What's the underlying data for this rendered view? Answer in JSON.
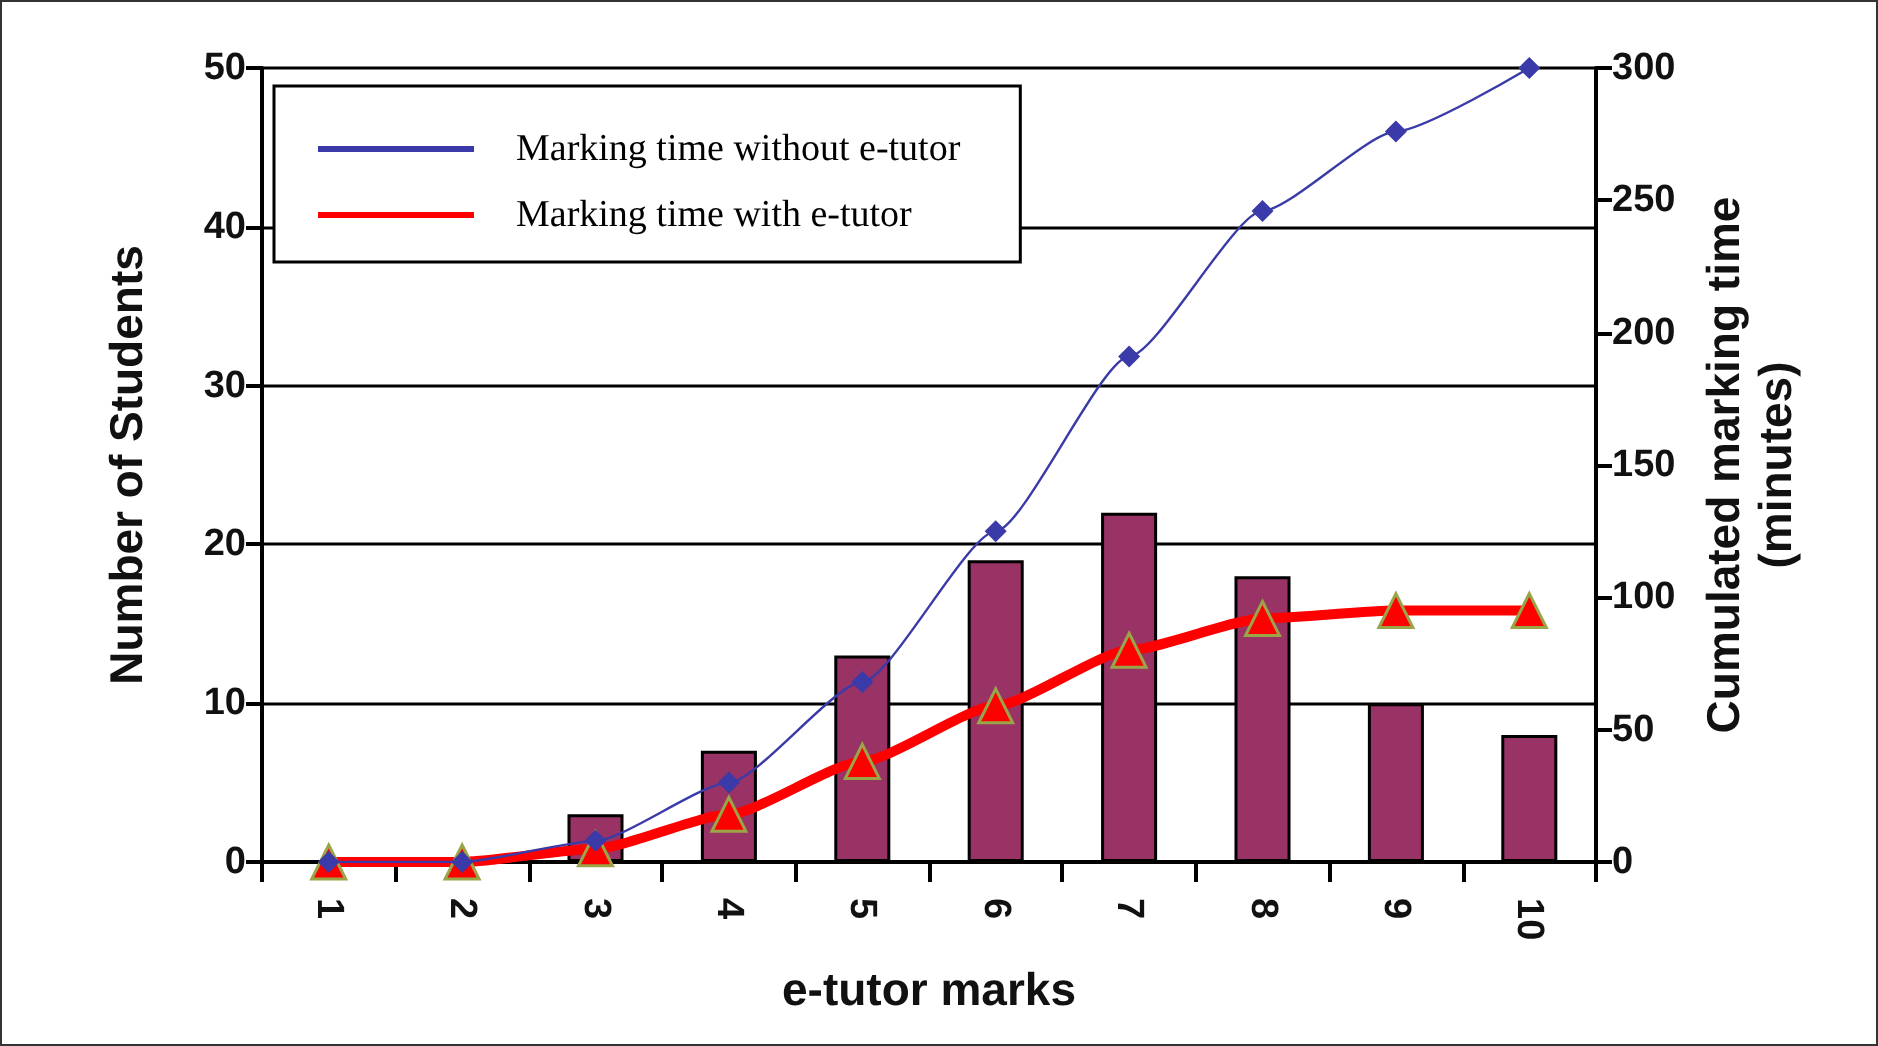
{
  "chart_data": {
    "type": "bar",
    "xlabel": "e-tutor marks",
    "ylabel": "Number of Students",
    "y2label": "Cumulated marking time\n(minutes)",
    "categories": [
      "1",
      "2",
      "3",
      "4",
      "5",
      "6",
      "7",
      "8",
      "9",
      "10"
    ],
    "series": [
      {
        "color": "#993366",
        "values": [
          0,
          0,
          3,
          7,
          13,
          19,
          22,
          18,
          10,
          8
        ]
      },
      {
        "type": "line",
        "name": "Marking time without e-tutor",
        "color": "#3a3aa8",
        "axis": "y2",
        "marker": "diamond",
        "values": [
          0,
          0,
          8,
          30,
          68,
          125,
          191,
          246,
          276,
          300
        ]
      },
      {
        "type": "line",
        "name": "Marking time with e-tutor",
        "color": "#ff0000",
        "axis": "y2",
        "marker": "triangle",
        "values": [
          0,
          0,
          5,
          18,
          38,
          59,
          80,
          92,
          95,
          95
        ]
      }
    ],
    "ylim": [
      0,
      50
    ],
    "yticks": [
      0,
      10,
      20,
      30,
      40,
      50
    ],
    "y2lim": [
      0,
      300
    ],
    "y2ticks": [
      0,
      50,
      100,
      150,
      200,
      250,
      300
    ],
    "grid": "y",
    "legend": "top left"
  }
}
